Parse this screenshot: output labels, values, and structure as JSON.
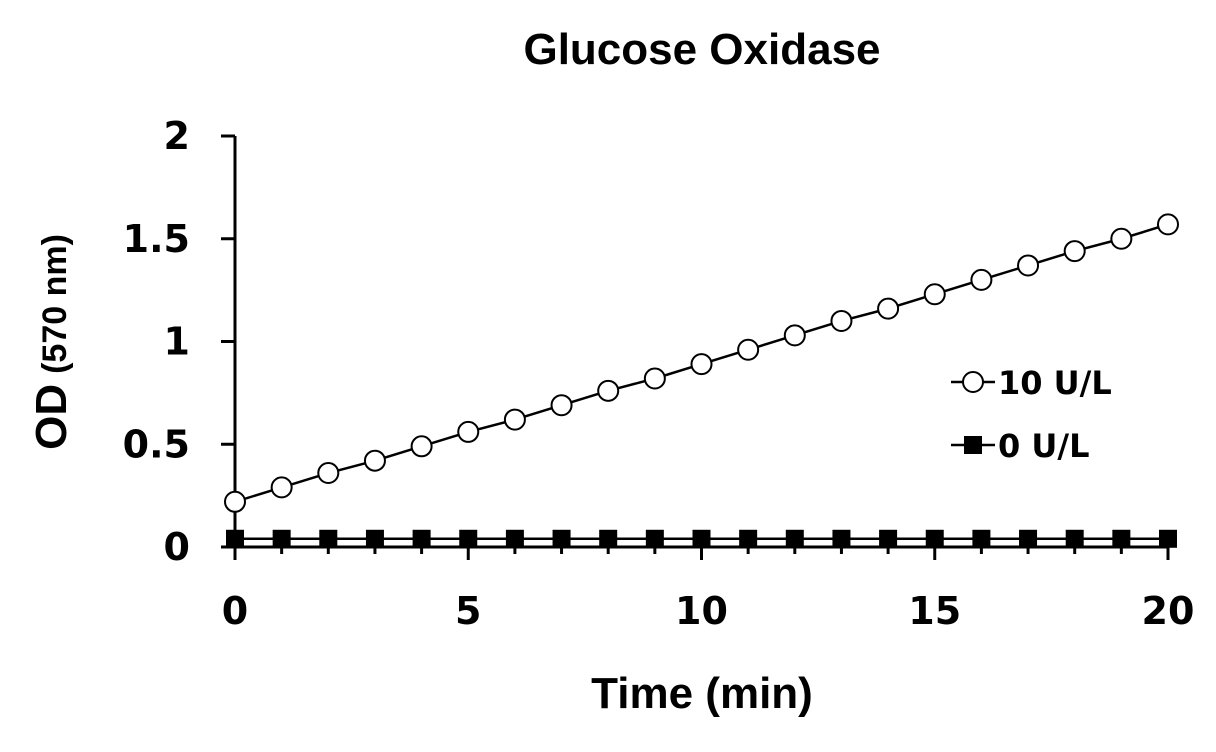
{
  "chart_data": {
    "type": "line",
    "title": "Glucose Oxidase",
    "xlabel": "Time (min)",
    "ylabel_main": "OD",
    "ylabel_unit": "(570 nm)",
    "xlim": [
      0,
      20
    ],
    "ylim": [
      0,
      2
    ],
    "xticks": [
      "0",
      "5",
      "10",
      "15",
      "20"
    ],
    "yticks": [
      "0",
      "0.5",
      "1",
      "1.5",
      "2"
    ],
    "grid": false,
    "legend_position": "right",
    "x": [
      0,
      1,
      2,
      3,
      4,
      5,
      6,
      7,
      8,
      9,
      10,
      11,
      12,
      13,
      14,
      15,
      16,
      17,
      18,
      19,
      20
    ],
    "series": [
      {
        "name": "10 U/L",
        "marker": "open-circle",
        "values": [
          0.22,
          0.29,
          0.36,
          0.42,
          0.49,
          0.56,
          0.62,
          0.69,
          0.76,
          0.82,
          0.89,
          0.96,
          1.03,
          1.1,
          1.16,
          1.23,
          1.3,
          1.37,
          1.44,
          1.5,
          1.57
        ]
      },
      {
        "name": "0 U/L",
        "marker": "filled-square",
        "values": [
          0.04,
          0.04,
          0.04,
          0.04,
          0.04,
          0.04,
          0.04,
          0.04,
          0.04,
          0.04,
          0.04,
          0.04,
          0.04,
          0.04,
          0.04,
          0.04,
          0.04,
          0.04,
          0.04,
          0.04,
          0.04
        ]
      }
    ],
    "colors": {
      "line": "#000000",
      "open_marker_fill": "#ffffff",
      "filled_marker_fill": "#000000"
    }
  }
}
